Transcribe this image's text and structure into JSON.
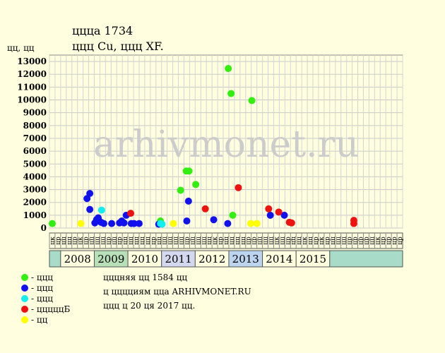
{
  "header": {
    "title": "ццца 1734",
    "subtitle": "ццц Cu, ццц XF.",
    "y_unit": "цц, цц"
  },
  "watermark": "arhivmonet.ru",
  "chart_data": {
    "type": "scatter",
    "ylim": [
      0,
      13500
    ],
    "yticks": [
      0,
      1000,
      2000,
      3000,
      4000,
      5000,
      6000,
      7000,
      8000,
      9000,
      10000,
      11000,
      12000,
      13000
    ],
    "x_unit": "half-year slot index (6 slots per year)",
    "quarter_labels": [
      "цк",
      "цр",
      "цц",
      "цц",
      "цр",
      "цк",
      "цр",
      "цц",
      "цц",
      "цц",
      "цр",
      "цц",
      "цр",
      "цц",
      "цц",
      "цц",
      "цц",
      "цц",
      "цр",
      "цц",
      "цц",
      "цц",
      "цц",
      "цц",
      "цр",
      "цц",
      "цц",
      "цц",
      "цц",
      "цк",
      "цр",
      "цц",
      "цц",
      "цц",
      "цц",
      "цр",
      "цр",
      "цц",
      "цц",
      "цц",
      "цк",
      "цц",
      "цр",
      "цц",
      "цц",
      "цк",
      "цц",
      "цр",
      "цк",
      "цр",
      "цц",
      "цц",
      "цц",
      "цр",
      "цр",
      "цр",
      "цр",
      "цц",
      "цк",
      "цр",
      "цр",
      "цр",
      "цр"
    ],
    "years": [
      "2008",
      "2009",
      "2010",
      "2011",
      "2012",
      "2013",
      "2014",
      "2015"
    ],
    "year_colors": [
      "#ffffe0",
      "#b8e0b8",
      "#ffffe0",
      "#d4d8ee",
      "#ffffe0",
      "#bcd4ee",
      "#ffffe0",
      "#ffffe0"
    ],
    "series": [
      {
        "name": "ццц",
        "color": "#33ee11",
        "points": [
          [
            0.0,
            350
          ],
          [
            19.3,
            550
          ],
          [
            22.9,
            2950
          ],
          [
            23.9,
            4450
          ],
          [
            24.4,
            4450
          ],
          [
            25.6,
            3400
          ],
          [
            31.4,
            12450
          ],
          [
            31.9,
            10500
          ],
          [
            32.2,
            1000
          ],
          [
            35.6,
            9950
          ]
        ]
      },
      {
        "name": "ццц",
        "color": "#1111ee",
        "points": [
          [
            6.2,
            2300
          ],
          [
            6.7,
            2700
          ],
          [
            6.7,
            1450
          ],
          [
            7.6,
            400
          ],
          [
            7.9,
            650
          ],
          [
            8.2,
            800
          ],
          [
            8.7,
            450
          ],
          [
            8.3,
            600
          ],
          [
            9.2,
            350
          ],
          [
            10.6,
            350
          ],
          [
            12.0,
            400
          ],
          [
            12.4,
            550
          ],
          [
            12.8,
            400
          ],
          [
            13.2,
            1000
          ],
          [
            14.1,
            350
          ],
          [
            14.6,
            350
          ],
          [
            15.5,
            350
          ],
          [
            19.0,
            300
          ],
          [
            24.0,
            550
          ],
          [
            24.3,
            2100
          ],
          [
            28.8,
            650
          ],
          [
            31.3,
            350
          ],
          [
            38.9,
            1000
          ],
          [
            41.4,
            1000
          ]
        ]
      },
      {
        "name": "ццц",
        "color": "#11eeee",
        "points": [
          [
            8.8,
            1400
          ],
          [
            19.3,
            350
          ],
          [
            19.6,
            300
          ]
        ]
      },
      {
        "name": "цццццБ",
        "color": "#ee1111",
        "points": [
          [
            14.0,
            1150
          ],
          [
            27.3,
            1500
          ],
          [
            33.2,
            3150
          ],
          [
            38.6,
            1500
          ],
          [
            40.4,
            1250
          ],
          [
            42.3,
            450
          ],
          [
            42.7,
            400
          ],
          [
            53.8,
            600
          ],
          [
            53.8,
            350
          ]
        ]
      },
      {
        "name": "цц",
        "color": "#ffff00",
        "points": [
          [
            5.1,
            350
          ],
          [
            21.6,
            350
          ],
          [
            35.4,
            350
          ],
          [
            36.5,
            350
          ]
        ]
      }
    ]
  },
  "legend": [
    {
      "label": "- ццц",
      "color": "#33ee11"
    },
    {
      "label": "- ццц",
      "color": "#1111ee"
    },
    {
      "label": "- ццц",
      "color": "#11eeee"
    },
    {
      "label": "- цццццБ",
      "color": "#ee1111"
    },
    {
      "label": "- цц",
      "color": "#ffff00"
    }
  ],
  "info": {
    "line1": "цццняя цц 1584 цц",
    "line2": "ц цццциям цца ARHIVMONET.RU",
    "line3": "ццц ц 20 ця 2017 цц."
  }
}
